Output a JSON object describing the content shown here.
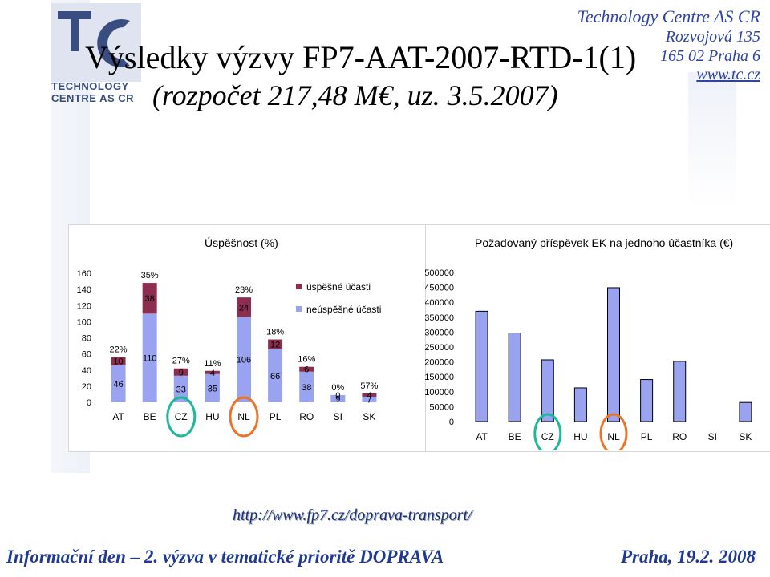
{
  "header": {
    "title_line1": "Výsledky výzvy FP7-AAT-2007-RTD-1(1)",
    "title_line2": "(rozpočet  217,48 M€, uz. 3.5.2007)",
    "logo_text_line1": "TECHNOLOGY",
    "logo_text_line2": "CENTRE AS CR",
    "address": {
      "org": "Technology Centre AS CR",
      "street": "Rozvojová 135",
      "city": "165 02 Praha 6",
      "web": "www.tc.cz"
    }
  },
  "colors": {
    "success": "#8b2e4f",
    "fail": "#9aa3f0",
    "title_blue": "#3045a0",
    "circle_green": "#1fb89a",
    "circle_orange": "#e8752a"
  },
  "chart_data": [
    {
      "type": "bar",
      "stacked": true,
      "title": "Úspěšnost (%)",
      "categories": [
        "AT",
        "BE",
        "CZ",
        "HU",
        "NL",
        "PL",
        "RO",
        "SI",
        "SK"
      ],
      "series": [
        {
          "name": "neúspěšné účasti",
          "values": [
            46,
            110,
            33,
            35,
            106,
            66,
            38,
            9,
            7
          ]
        },
        {
          "name": "úspěšné účasti",
          "values": [
            10,
            38,
            9,
            4,
            24,
            12,
            6,
            0,
            4
          ]
        }
      ],
      "percent_labels": [
        "22%",
        "35%",
        "27%",
        "11%",
        "23%",
        "18%",
        "16%",
        "0%",
        "57%"
      ],
      "ylim": [
        0,
        160
      ],
      "yticks": [
        0,
        20,
        40,
        60,
        80,
        100,
        120,
        140,
        160
      ],
      "legend": "top-right",
      "highlight": [
        {
          "category": "CZ",
          "color": "green"
        },
        {
          "category": "NL",
          "color": "orange"
        }
      ]
    },
    {
      "type": "bar",
      "title": "Požadovaný příspěvek EK na jednoho účastníka (€)",
      "categories": [
        "AT",
        "BE",
        "CZ",
        "HU",
        "NL",
        "PL",
        "RO",
        "SI",
        "SK"
      ],
      "values": [
        370000,
        297000,
        207000,
        113000,
        449000,
        141000,
        202000,
        0,
        64000
      ],
      "ylim": [
        0,
        500000
      ],
      "yticks": [
        0,
        50000,
        100000,
        150000,
        200000,
        250000,
        300000,
        350000,
        400000,
        450000,
        500000
      ],
      "highlight": [
        {
          "category": "CZ",
          "color": "green"
        },
        {
          "category": "NL",
          "color": "orange"
        }
      ]
    }
  ],
  "footer": {
    "url": "http://www.fp7.cz/doprava-transport/",
    "left": "Informační den – 2. výzva v tematické prioritě DOPRAVA",
    "right": "Praha, 19.2. 2008"
  }
}
